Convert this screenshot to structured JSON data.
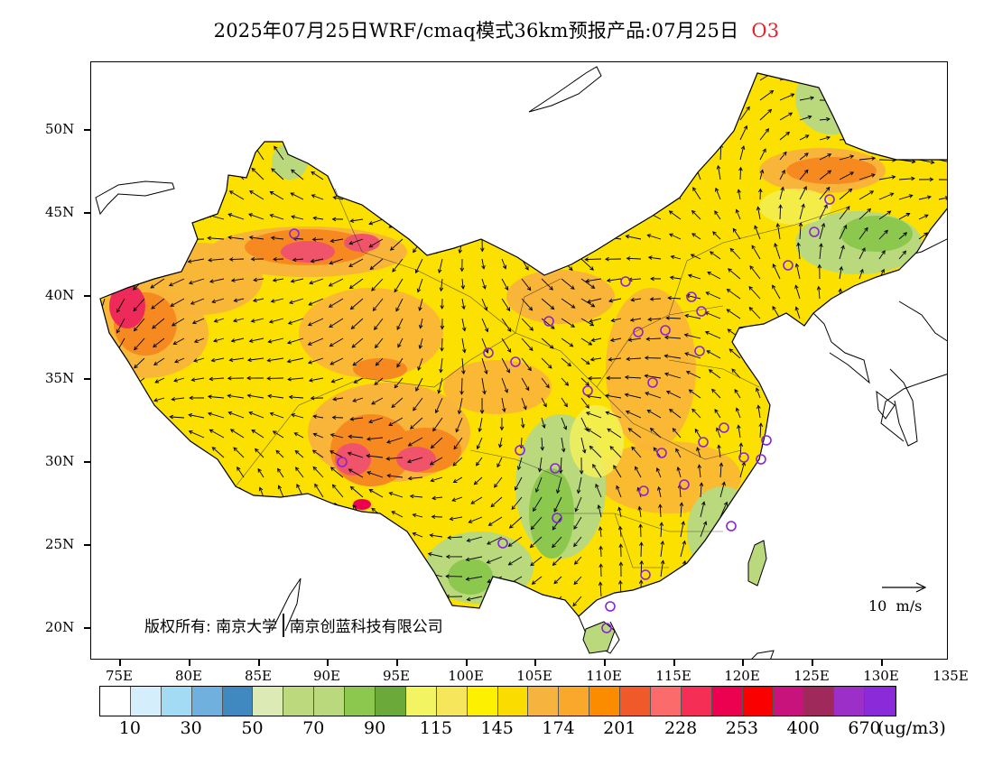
{
  "title": {
    "text": "2025年07月25日WRF/cmaq模式36km预报产品:07月25日",
    "species": "O3",
    "species_color": "#e0262a"
  },
  "axes": {
    "y_labels": [
      "50N",
      "45N",
      "40N",
      "35N",
      "30N",
      "25N",
      "20N"
    ],
    "x_labels": [
      "75E",
      "80E",
      "85E",
      "90E",
      "95E",
      "100E",
      "105E",
      "110E",
      "115E",
      "120E",
      "125E",
      "130E",
      "135E"
    ]
  },
  "copyright": {
    "prefix": "版权所有:",
    "org1": "南京大学",
    "org2": "南京创蓝科技有限公司"
  },
  "wind_reference": "10  m/s",
  "legend": {
    "colors": [
      "#ffffff",
      "#d4eefb",
      "#a3daf4",
      "#6fb0de",
      "#3f88c0",
      "#dcebb5",
      "#bcd97e",
      "#b9d97c",
      "#8cc74e",
      "#6aa93a",
      "#f2f561",
      "#f5e65c",
      "#fdf000",
      "#fbdc00",
      "#f6b43f",
      "#f9a82c",
      "#fb8c00",
      "#f0592a",
      "#fb6b6b",
      "#f42e55",
      "#ec0050",
      "#fb0000",
      "#c8127c",
      "#a0295c",
      "#9b2fc8",
      "#8b2ad8"
    ],
    "labels": [
      "10",
      "30",
      "50",
      "70",
      "90",
      "115",
      "145",
      "174",
      "201",
      "228",
      "253",
      "400",
      "670"
    ],
    "unit": "(ug/m3)"
  }
}
